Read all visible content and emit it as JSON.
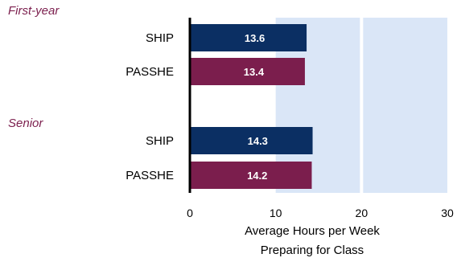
{
  "chart_data": {
    "type": "bar",
    "orientation": "horizontal",
    "groups": [
      {
        "name": "First-year",
        "bars": [
          {
            "label": "SHIP",
            "value": 13.6,
            "value_label": "13.6",
            "color": "#0b2f63"
          },
          {
            "label": "PASSHE",
            "value": 13.4,
            "value_label": "13.4",
            "color": "#7b1e4d"
          }
        ]
      },
      {
        "name": "Senior",
        "bars": [
          {
            "label": "SHIP",
            "value": 14.3,
            "value_label": "14.3",
            "color": "#0b2f63"
          },
          {
            "label": "PASSHE",
            "value": 14.2,
            "value_label": "14.2",
            "color": "#7b1e4d"
          }
        ]
      }
    ],
    "xlabel": [
      "Average Hours per Week",
      "Preparing for Class"
    ],
    "xlim": [
      0,
      30
    ],
    "xticks": [
      {
        "value": 0,
        "label": "0"
      },
      {
        "value": 10,
        "label": "10"
      },
      {
        "value": 20,
        "label": "20"
      },
      {
        "value": 30,
        "label": "30"
      }
    ],
    "shaded_range": [
      10,
      30
    ],
    "colors": {
      "shade": "#dae6f7",
      "gridline": "#ffffff",
      "axis": "#000000",
      "group_label": "#7b1e4d",
      "bar_text": "#ffffff"
    }
  }
}
